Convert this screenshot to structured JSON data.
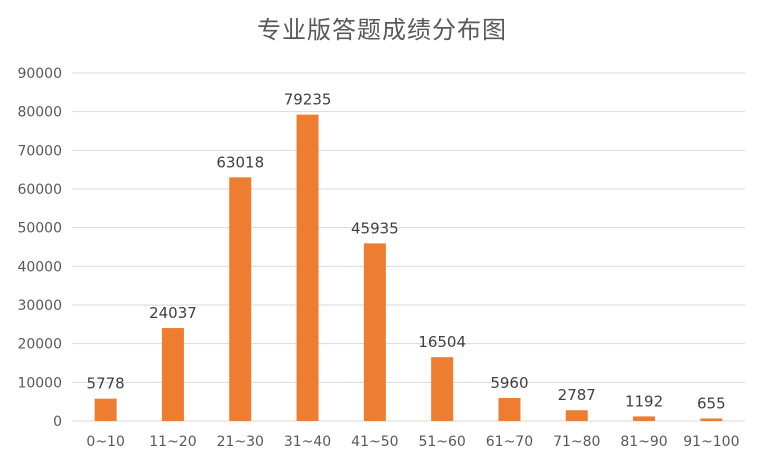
{
  "chart_data": {
    "type": "bar",
    "title": "专业版答题成绩分布图",
    "xlabel": "",
    "ylabel": "",
    "categories": [
      "0~10",
      "11~20",
      "21~30",
      "31~40",
      "41~50",
      "51~60",
      "61~70",
      "71~80",
      "81~90",
      "91~100"
    ],
    "values": [
      5778,
      24037,
      63018,
      79235,
      45935,
      16504,
      5960,
      2787,
      1192,
      655
    ],
    "ylim": [
      0,
      90000
    ],
    "yticks": [
      "0",
      "10000",
      "20000",
      "30000",
      "40000",
      "50000",
      "60000",
      "70000",
      "80000",
      "90000"
    ],
    "grid": true,
    "legend": "none",
    "bar_color": "#ED7D31",
    "grid_color": "#D9D9D9"
  }
}
